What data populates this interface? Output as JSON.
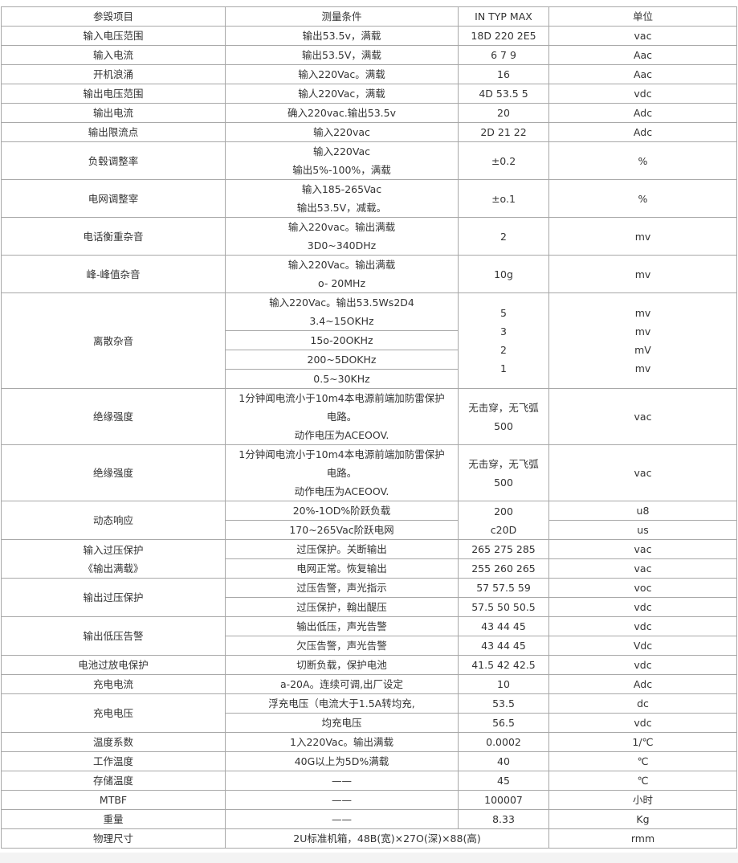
{
  "table": {
    "rows": [
      [
        {
          "t": [
            "参毁项目"
          ]
        },
        {
          "t": [
            "测量条件"
          ]
        },
        {
          "t": [
            "IN TYP MAX"
          ]
        },
        {
          "t": [
            "单位"
          ]
        }
      ],
      [
        {
          "t": [
            "输入电压范围"
          ]
        },
        {
          "t": [
            "输出53.5v，满载"
          ]
        },
        {
          "t": [
            "18D 220 2E5"
          ]
        },
        {
          "t": [
            "vac"
          ]
        }
      ],
      [
        {
          "t": [
            "输入电流"
          ]
        },
        {
          "t": [
            "输出53.5V，满载"
          ]
        },
        {
          "t": [
            "6 7 9"
          ]
        },
        {
          "t": [
            "Aac"
          ]
        }
      ],
      [
        {
          "t": [
            "开机浪涌"
          ]
        },
        {
          "t": [
            "输入220Vac。满载"
          ]
        },
        {
          "t": [
            "16"
          ]
        },
        {
          "t": [
            "Aac"
          ]
        }
      ],
      [
        {
          "t": [
            "输出电压范围"
          ]
        },
        {
          "t": [
            "输人220Vac，满载"
          ]
        },
        {
          "t": [
            "4D 53.5 5"
          ]
        },
        {
          "t": [
            "vdc"
          ]
        }
      ],
      [
        {
          "t": [
            "输出电流"
          ]
        },
        {
          "t": [
            "确入220vac.输出53.5v"
          ]
        },
        {
          "t": [
            "20"
          ]
        },
        {
          "t": [
            "Adc"
          ]
        }
      ],
      [
        {
          "t": [
            "输出限流点"
          ]
        },
        {
          "t": [
            "输入220vac"
          ]
        },
        {
          "t": [
            "2D 21 22"
          ]
        },
        {
          "t": [
            "Adc"
          ]
        }
      ],
      [
        {
          "t": [
            "负毂调整率"
          ]
        },
        {
          "t": [
            "输入220Vac",
            "输出5%-100%，满载"
          ]
        },
        {
          "t": [
            "±0.2"
          ]
        },
        {
          "t": [
            "%"
          ]
        }
      ],
      [
        {
          "t": [
            "电网调整宰"
          ]
        },
        {
          "t": [
            "输入185-265Vac",
            "输出53.5V，减载。"
          ]
        },
        {
          "t": [
            "±o.1"
          ]
        },
        {
          "t": [
            "%"
          ]
        }
      ],
      [
        {
          "t": [
            "电话衡重杂音"
          ]
        },
        {
          "t": [
            "输入220vac。输出满载",
            "3D0~340DHz"
          ]
        },
        {
          "t": [
            "2"
          ]
        },
        {
          "t": [
            "mv"
          ]
        }
      ],
      [
        {
          "t": [
            "峰-峰值杂音"
          ]
        },
        {
          "t": [
            "输入220Vac。输出满载",
            "o- 20MHz"
          ]
        },
        {
          "t": [
            "10g"
          ]
        },
        {
          "t": [
            "mv"
          ]
        }
      ],
      [
        {
          "t": [
            "离散杂音"
          ],
          "rs": 4
        },
        {
          "t": [
            "输入220Vac。输出53.5Ws2D4",
            "3.4~15OKHz"
          ]
        },
        {
          "t": [
            "5",
            "3",
            "2",
            "1"
          ],
          "rs": 4
        },
        {
          "t": [
            "mv",
            "mv",
            "mV",
            "mv"
          ],
          "rs": 4
        }
      ],
      [
        {
          "t": [
            "15o-20OKHz"
          ]
        }
      ],
      [
        {
          "t": [
            "200~5DOKHz"
          ]
        }
      ],
      [
        {
          "t": [
            "0.5~30KHz"
          ]
        }
      ],
      [
        {
          "t": [
            "绝缘强度"
          ]
        },
        {
          "t": [
            "1分钟闻电流小于10m4本电源前端加防雷保护",
            "电路。",
            "动作电压为ACEOOV."
          ]
        },
        {
          "t": [
            "无击穿，无飞弧",
            "500"
          ]
        },
        {
          "t": [
            "vac"
          ]
        }
      ],
      [
        {
          "t": [
            "绝缘强度"
          ]
        },
        {
          "t": [
            "1分钟闻电流小于10m4本电源前端加防雷保护",
            "电路。",
            "动作电压为ACEOOV."
          ]
        },
        {
          "t": [
            "无击穿，无飞弧",
            "500"
          ]
        },
        {
          "t": [
            "vac"
          ]
        }
      ],
      [
        {
          "t": [
            "动态响应"
          ],
          "rs": 2
        },
        {
          "t": [
            "20%-1OD%阶跃负载"
          ]
        },
        {
          "t": [
            "200",
            "c20D"
          ],
          "rs": 2
        },
        {
          "t": [
            "u8"
          ]
        }
      ],
      [
        {
          "t": [
            "170~265Vac阶跃电网"
          ]
        },
        {
          "t": [
            "us"
          ]
        }
      ],
      [
        {
          "t": [
            "输入过压保护",
            "《输出满载》"
          ],
          "rs": 2
        },
        {
          "t": [
            "过压保护。关断输出"
          ]
        },
        {
          "t": [
            "265 275 285"
          ]
        },
        {
          "t": [
            "vac"
          ]
        }
      ],
      [
        {
          "t": [
            "电网正常。恢复输出"
          ]
        },
        {
          "t": [
            "255 260 265"
          ]
        },
        {
          "t": [
            "vac"
          ]
        }
      ],
      [
        {
          "t": [
            "输出过压保护"
          ],
          "rs": 2
        },
        {
          "t": [
            "过压告警，声光指示"
          ]
        },
        {
          "t": [
            "57 57.5 59"
          ]
        },
        {
          "t": [
            "voc"
          ]
        }
      ],
      [
        {
          "t": [
            "过压保护，翰出醍压"
          ]
        },
        {
          "t": [
            "57.5 50 50.5"
          ]
        },
        {
          "t": [
            "vdc"
          ]
        }
      ],
      [
        {
          "t": [
            "输出低压告警"
          ],
          "rs": 2
        },
        {
          "t": [
            "输出低压，声光告警"
          ]
        },
        {
          "t": [
            "43 44 45"
          ]
        },
        {
          "t": [
            "vdc"
          ]
        }
      ],
      [
        {
          "t": [
            "欠压告警，声光告警"
          ]
        },
        {
          "t": [
            "43 44 45"
          ]
        },
        {
          "t": [
            "Vdc"
          ]
        }
      ],
      [
        {
          "t": [
            "电池过放电保护"
          ]
        },
        {
          "t": [
            "切断负载，保护电池"
          ]
        },
        {
          "t": [
            "41.5 42 42.5"
          ]
        },
        {
          "t": [
            "vdc"
          ]
        }
      ],
      [
        {
          "t": [
            "充电电流"
          ]
        },
        {
          "t": [
            "a-20A。连续可调,出厂设定"
          ]
        },
        {
          "t": [
            "10"
          ]
        },
        {
          "t": [
            "Adc"
          ]
        }
      ],
      [
        {
          "t": [
            "充电电压"
          ],
          "rs": 2
        },
        {
          "t": [
            "浮充电压（电流大于1.5A转均充,"
          ]
        },
        {
          "t": [
            "53.5"
          ]
        },
        {
          "t": [
            "dc"
          ]
        }
      ],
      [
        {
          "t": [
            "均充电压"
          ]
        },
        {
          "t": [
            "56.5"
          ]
        },
        {
          "t": [
            "vdc"
          ]
        }
      ],
      [
        {
          "t": [
            "温度系数"
          ]
        },
        {
          "t": [
            "1入220Vac。输出满载"
          ]
        },
        {
          "t": [
            "0.0002"
          ]
        },
        {
          "t": [
            "1/℃"
          ]
        }
      ],
      [
        {
          "t": [
            "工作温度"
          ]
        },
        {
          "t": [
            "40G以上为5D%满载"
          ]
        },
        {
          "t": [
            "40"
          ]
        },
        {
          "t": [
            "℃"
          ]
        }
      ],
      [
        {
          "t": [
            "存储温度"
          ]
        },
        {
          "t": [
            "——"
          ]
        },
        {
          "t": [
            "45"
          ]
        },
        {
          "t": [
            "℃"
          ]
        }
      ],
      [
        {
          "t": [
            "MTBF"
          ]
        },
        {
          "t": [
            "——"
          ]
        },
        {
          "t": [
            "100007"
          ]
        },
        {
          "t": [
            "小时"
          ]
        }
      ],
      [
        {
          "t": [
            "重量"
          ]
        },
        {
          "t": [
            "——"
          ]
        },
        {
          "t": [
            "8.33"
          ]
        },
        {
          "t": [
            "Kg"
          ]
        }
      ],
      [
        {
          "t": [
            "物理尺寸"
          ]
        },
        {
          "t": [
            "2U标准机箱，48B(宽)×27O(深)×88(高)"
          ],
          "cs": 2
        },
        {
          "t": [
            "rmm"
          ]
        }
      ]
    ]
  }
}
